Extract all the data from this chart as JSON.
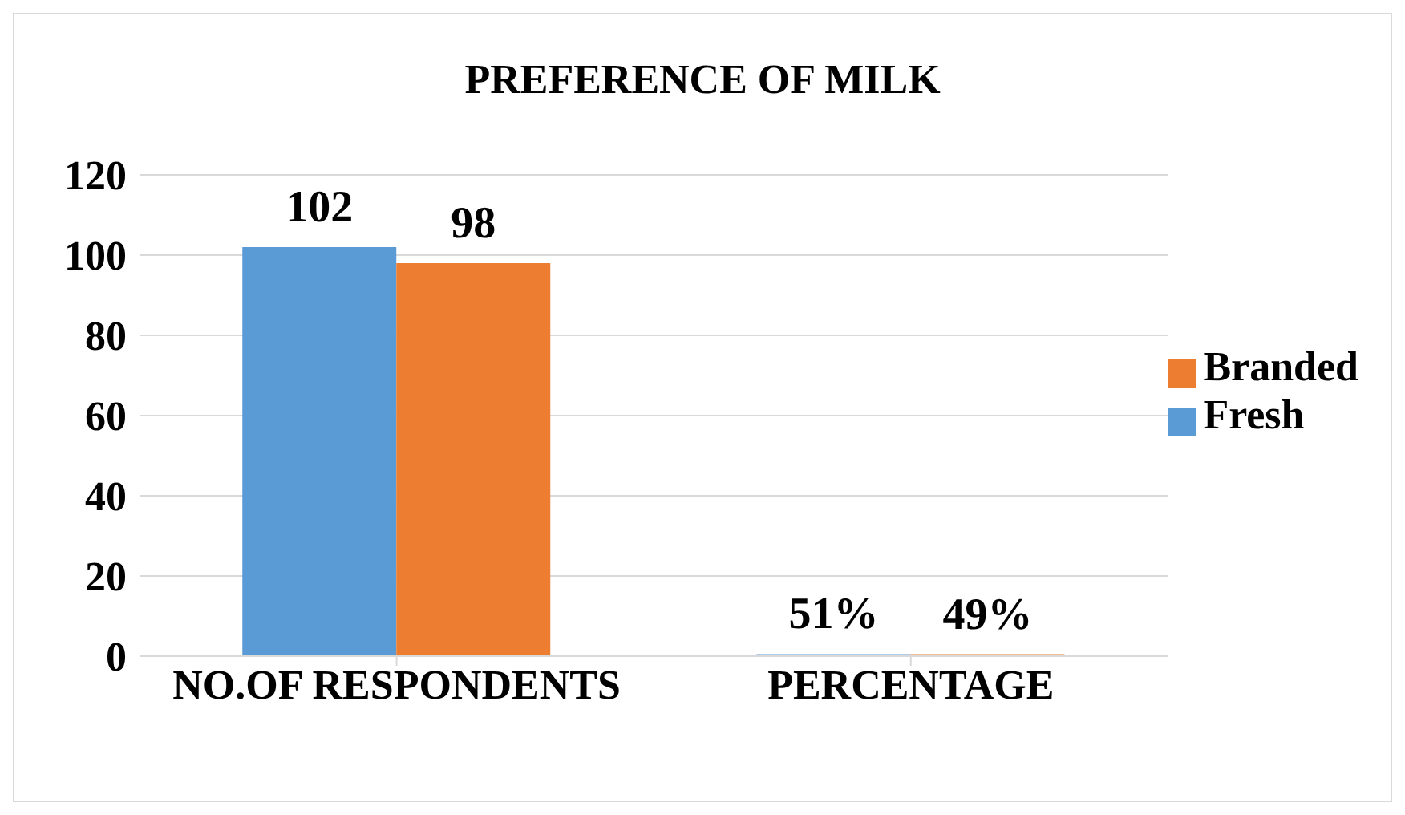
{
  "chart_data": {
    "type": "bar",
    "title": "PREFERENCE OF MILK",
    "categories": [
      "NO.OF RESPONDENTS",
      "PERCENTAGE"
    ],
    "series": [
      {
        "name": "Fresh",
        "color": "#5b9bd5",
        "values": [
          102,
          0.51
        ],
        "value_labels": [
          "102",
          "51%"
        ]
      },
      {
        "name": "Branded",
        "color": "#ed7d31",
        "values": [
          98,
          0.49
        ],
        "value_labels": [
          "98",
          "49%"
        ]
      }
    ],
    "ylim": [
      0,
      120
    ],
    "yticks": [
      0,
      20,
      40,
      60,
      80,
      100,
      120
    ],
    "grid": "y",
    "legend": "right"
  }
}
